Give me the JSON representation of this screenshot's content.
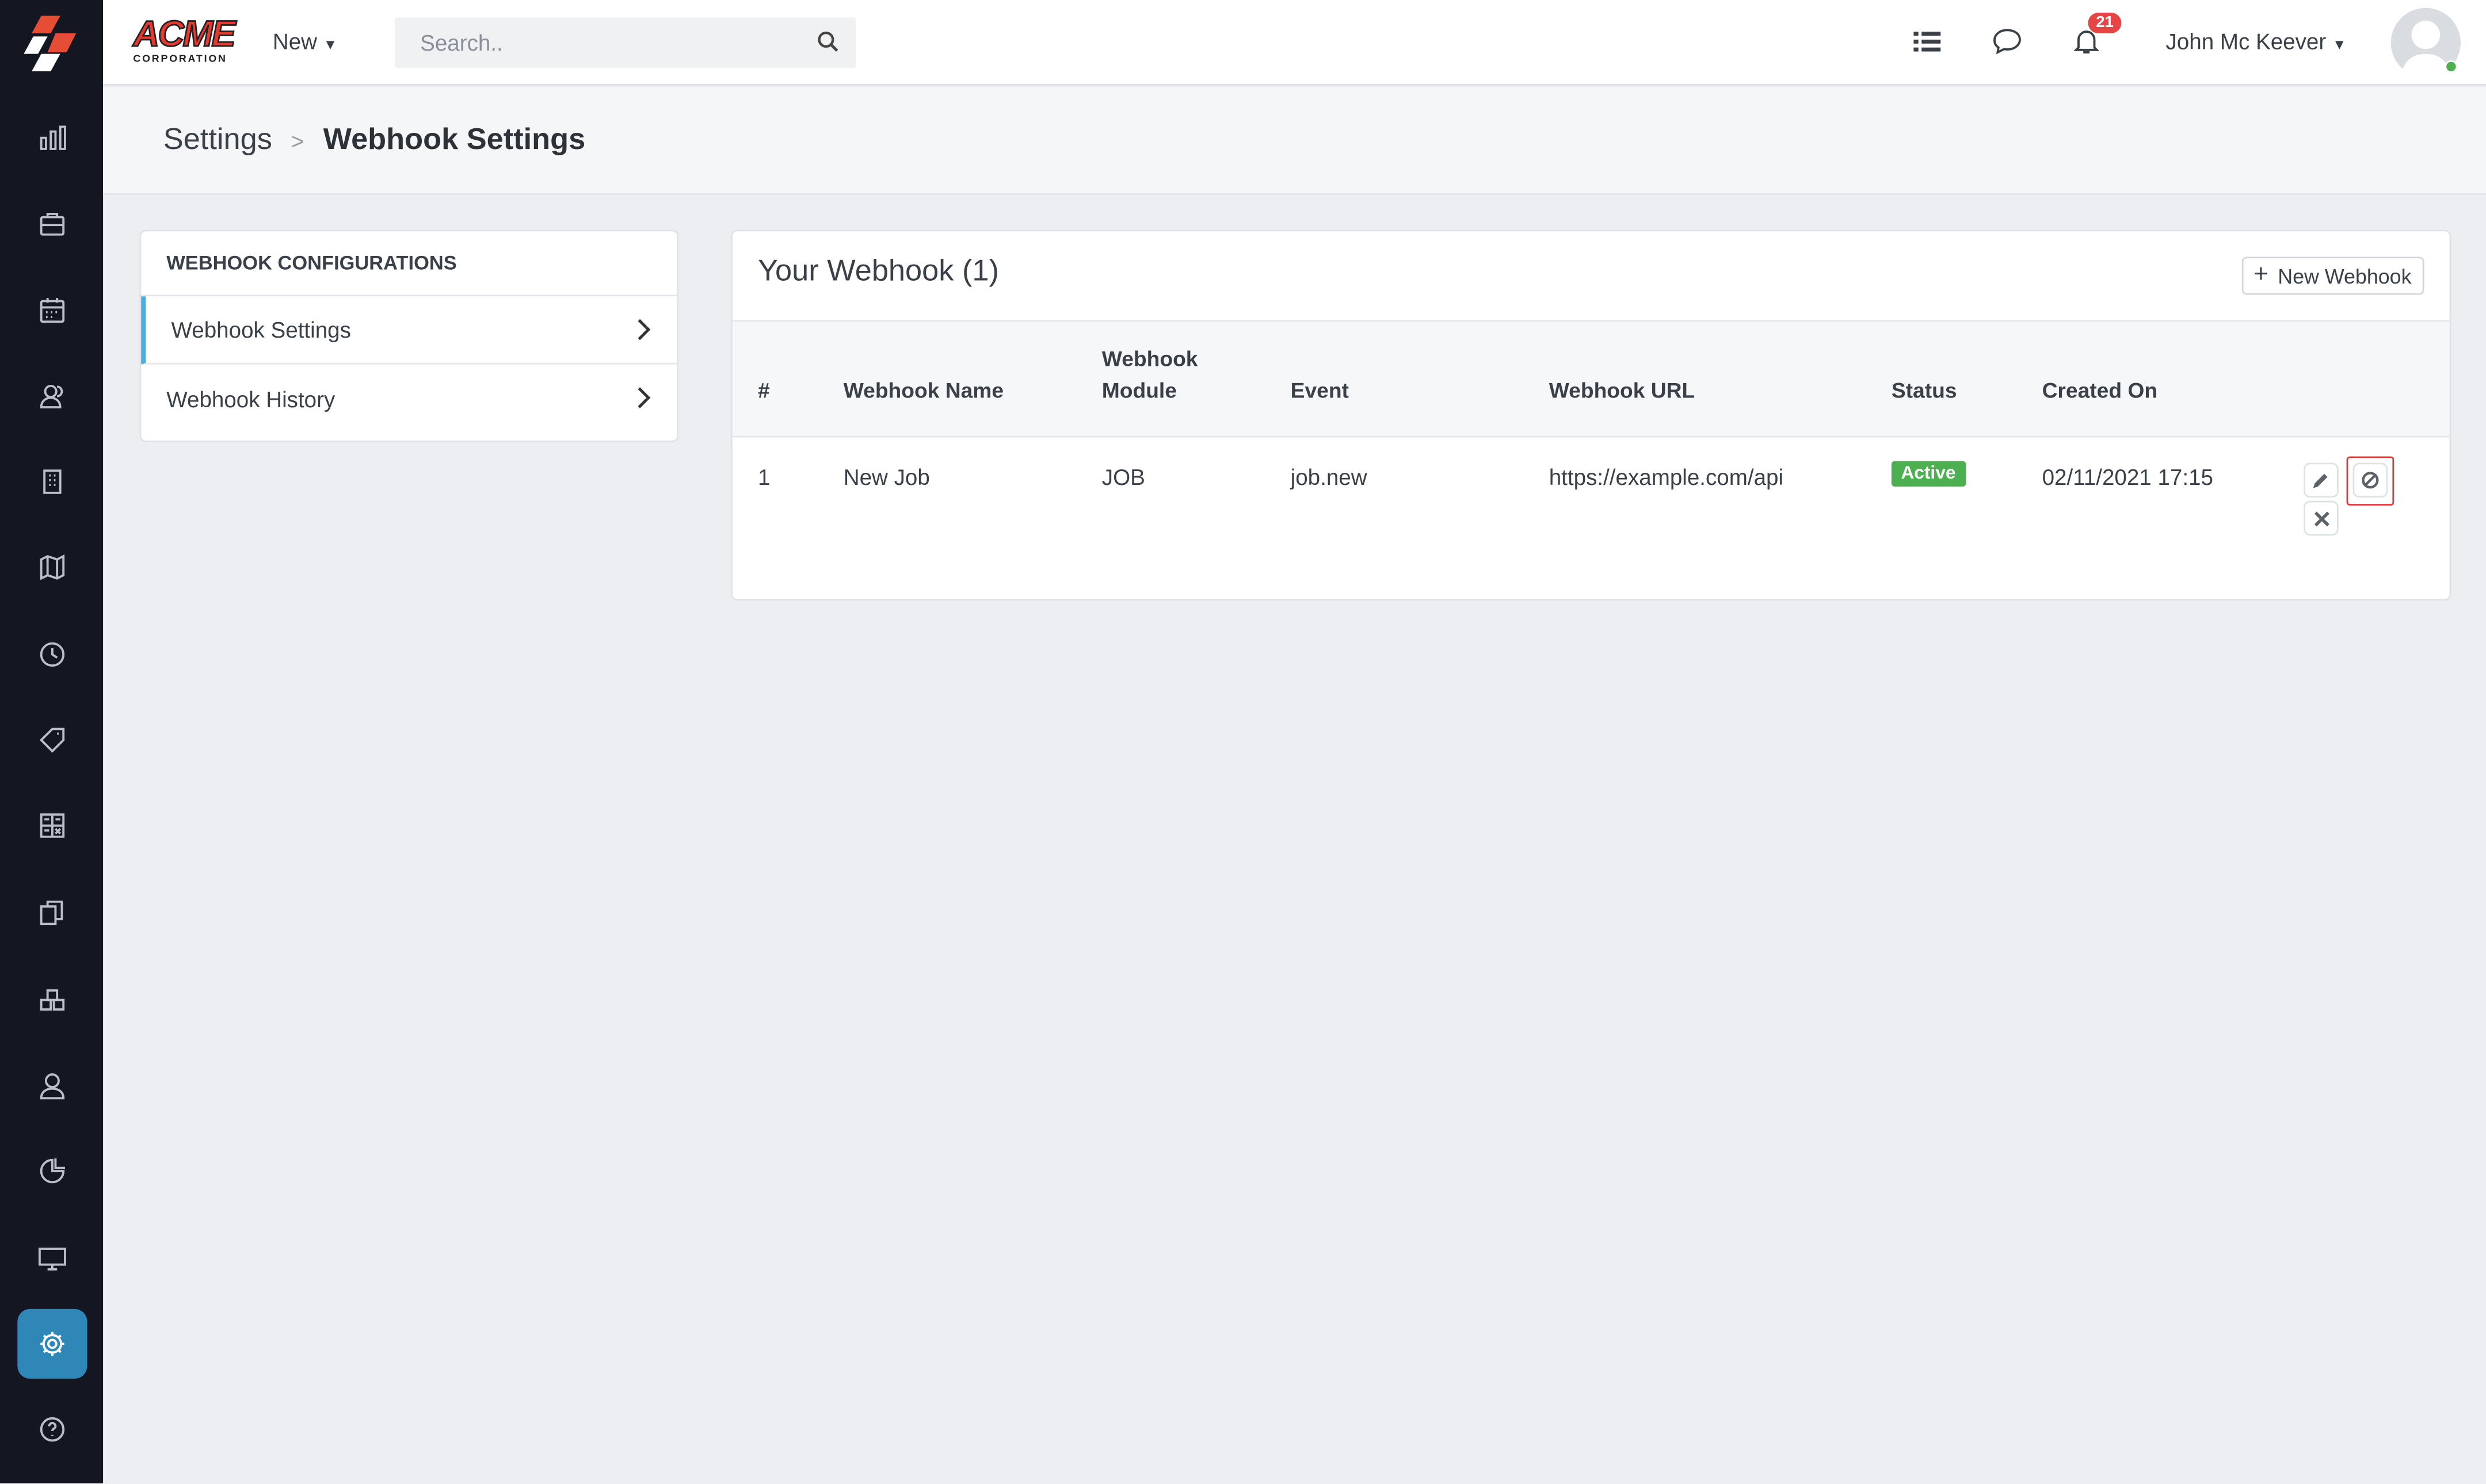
{
  "brand": {
    "name": "ACME",
    "sub": "CORPORATION",
    "accent": "#e63a30"
  },
  "topbar": {
    "new_label": "New",
    "search_placeholder": "Search..",
    "notification_count": "21",
    "user_name": "John Mc Keever"
  },
  "sidebar": {
    "items": [
      {
        "icon": "bar-chart-icon"
      },
      {
        "icon": "briefcase-icon"
      },
      {
        "icon": "calendar-icon"
      },
      {
        "icon": "users-icon"
      },
      {
        "icon": "building-icon"
      },
      {
        "icon": "map-icon"
      },
      {
        "icon": "clock-icon"
      },
      {
        "icon": "tag-icon"
      },
      {
        "icon": "calculator-icon"
      },
      {
        "icon": "documents-icon"
      },
      {
        "icon": "boxes-icon"
      },
      {
        "icon": "user-icon"
      },
      {
        "icon": "pie-chart-icon"
      },
      {
        "icon": "monitor-icon"
      },
      {
        "icon": "gear-icon",
        "active": true
      },
      {
        "icon": "help-icon"
      }
    ]
  },
  "breadcrumb": {
    "parent": "Settings",
    "current": "Webhook Settings"
  },
  "config": {
    "title": "WEBHOOK CONFIGURATIONS",
    "items": [
      "Webhook Settings",
      "Webhook History"
    ]
  },
  "webhooks": {
    "title": "Your Webhook (1)",
    "new_button": "New Webhook",
    "columns": [
      "#",
      "Webhook Name",
      "Webhook\nModule",
      "Event",
      "Webhook URL",
      "Status",
      "Created On"
    ],
    "rows": [
      {
        "num": "1",
        "name": "New Job",
        "module": "JOB",
        "event": "job.new",
        "url": "https://example.com/api",
        "status": "Active",
        "created": "02/11/2021 17:15"
      }
    ]
  }
}
